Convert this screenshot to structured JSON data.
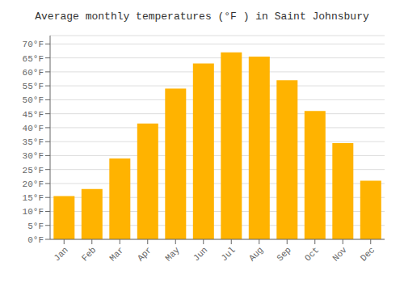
{
  "chart_data": {
    "type": "bar",
    "title": "Average monthly temperatures (°F ) in Saint Johnsbury",
    "categories": [
      "Jan",
      "Feb",
      "Mar",
      "Apr",
      "May",
      "Jun",
      "Jul",
      "Aug",
      "Sep",
      "Oct",
      "Nov",
      "Dec"
    ],
    "values": [
      15.5,
      18.0,
      29.0,
      41.5,
      54.0,
      63.0,
      67.0,
      65.5,
      57.0,
      46.0,
      34.5,
      21.0
    ],
    "color": "#FFB300",
    "ylim": [
      0,
      73
    ],
    "yticks": [
      {
        "value": 0,
        "label": "0°F"
      },
      {
        "value": 5,
        "label": "5°F"
      },
      {
        "value": 10,
        "label": "10°F"
      },
      {
        "value": 15,
        "label": "15°F"
      },
      {
        "value": 20,
        "label": "20°F"
      },
      {
        "value": 25,
        "label": "25°F"
      },
      {
        "value": 30,
        "label": "30°F"
      },
      {
        "value": 35,
        "label": "35°F"
      },
      {
        "value": 40,
        "label": "40°F"
      },
      {
        "value": 45,
        "label": "45°F"
      },
      {
        "value": 50,
        "label": "50°F"
      },
      {
        "value": 55,
        "label": "55°F"
      },
      {
        "value": 60,
        "label": "60°F"
      },
      {
        "value": 65,
        "label": "65°F"
      },
      {
        "value": 70,
        "label": "70°F"
      }
    ],
    "grid": true
  }
}
